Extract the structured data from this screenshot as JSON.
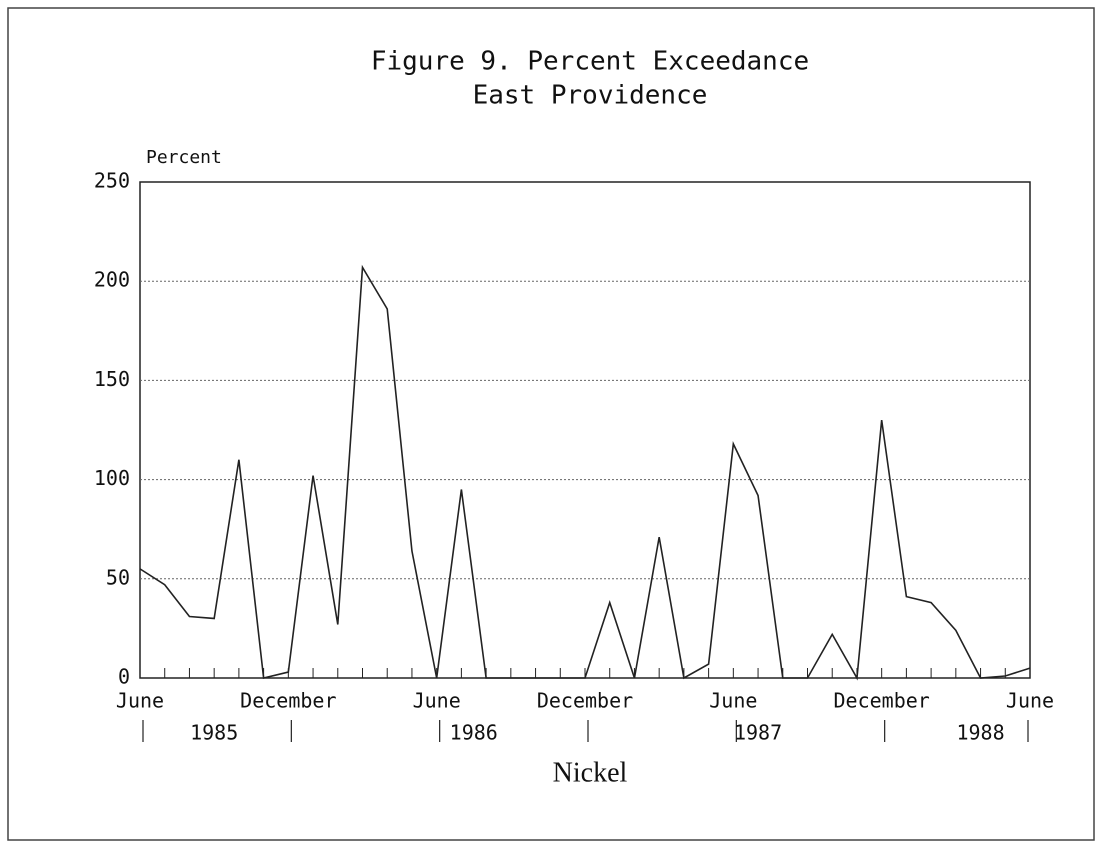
{
  "chart_data": {
    "type": "line",
    "title": "Figure 9. Percent Exceedance",
    "subtitle": "East Providence",
    "y_label": "Percent",
    "x_label": "Nickel",
    "categories": [
      "June",
      null,
      null,
      null,
      null,
      null,
      "December",
      null,
      null,
      null,
      null,
      null,
      "June",
      null,
      null,
      null,
      null,
      null,
      "December",
      null,
      null,
      null,
      null,
      null,
      "June",
      null,
      null,
      null,
      null,
      null,
      "December",
      null,
      null,
      null,
      null,
      null,
      "June"
    ],
    "year_labels": [
      "1985",
      "1986",
      "1987",
      "1988"
    ],
    "series": [
      {
        "name": "Nickel",
        "color": "#222222",
        "values": [
          55,
          47,
          31,
          30,
          110,
          0,
          3,
          102,
          27,
          207,
          186,
          64,
          0,
          95,
          0,
          0,
          0,
          0,
          0,
          38,
          0,
          71,
          0,
          7,
          118,
          92,
          0,
          0,
          22,
          0,
          130,
          41,
          38,
          24,
          0,
          1,
          5
        ]
      }
    ],
    "ylim": [
      0,
      250
    ],
    "yticks": [
      0,
      50,
      100,
      150,
      200,
      250
    ],
    "grid": true
  }
}
